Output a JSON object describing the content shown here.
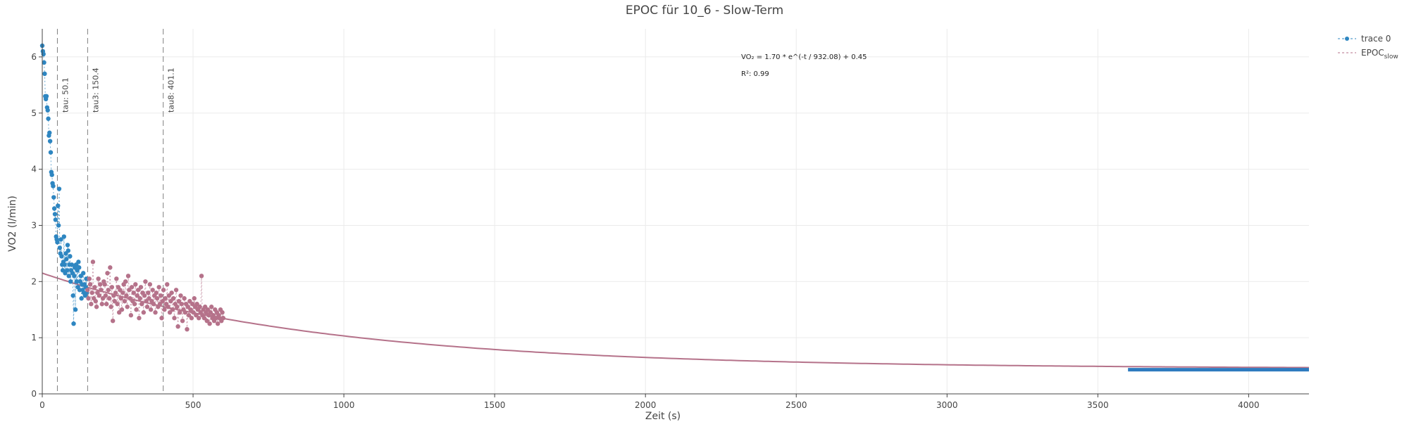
{
  "colors": {
    "trace0": "#2e86c1",
    "epoc_slow": "#b5728a",
    "fit_line": "#b5728a",
    "baseline": "#2e7bbf",
    "grid": "#ebebeb",
    "axis": "#444444",
    "vline": "#7f7f7f"
  },
  "chart_data": {
    "type": "scatter",
    "title": "EPOC für 10_6 - Slow-Term",
    "xlabel": "Zeit (s)",
    "ylabel": "VO2 (l/min)",
    "xlim": [
      0,
      4200
    ],
    "ylim": [
      0,
      6.5
    ],
    "xticks": [
      0,
      500,
      1000,
      1500,
      2000,
      2500,
      3000,
      3500,
      4000
    ],
    "yticks": [
      0,
      1,
      2,
      3,
      4,
      5,
      6
    ],
    "grid": true,
    "legend_position": "top-right",
    "legend": [
      {
        "label": "trace 0",
        "sub": ""
      },
      {
        "label": "EPOC",
        "sub": "slow"
      }
    ],
    "annotations": [
      "VO₂ = 1.70 * e^(-t / 932.08) + 0.45",
      "R²: 0.99"
    ],
    "vlines": [
      {
        "x": 50.1,
        "label": "tau: 50.1"
      },
      {
        "x": 150.4,
        "label": "tau3: 150.4"
      },
      {
        "x": 401.1,
        "label": "tau8: 401.1"
      }
    ],
    "fit": {
      "amplitude": 1.7,
      "tau": 932.08,
      "offset": 0.45,
      "x_range": [
        0,
        4200
      ]
    },
    "baseline": {
      "x": [
        3600,
        4200
      ],
      "y": 0.43
    },
    "series": [
      {
        "name": "trace 0",
        "x": [
          0,
          2,
          4,
          6,
          8,
          10,
          12,
          14,
          16,
          18,
          20,
          22,
          24,
          26,
          28,
          30,
          32,
          34,
          36,
          38,
          40,
          42,
          44,
          46,
          48,
          50,
          52,
          54,
          56,
          58,
          60,
          62,
          64,
          66,
          68,
          70,
          72,
          74,
          76,
          78,
          80,
          82,
          84,
          86,
          88,
          90,
          92,
          94,
          96,
          98,
          100,
          102,
          104,
          106,
          108,
          110,
          112,
          114,
          116,
          118,
          120,
          122,
          124,
          126,
          128,
          130,
          132,
          134,
          136,
          138,
          140,
          142,
          144,
          146,
          148
        ],
        "y": [
          6.2,
          6.1,
          6.05,
          5.9,
          5.7,
          5.3,
          5.25,
          5.3,
          5.1,
          5.05,
          4.9,
          4.6,
          4.65,
          4.5,
          4.3,
          3.95,
          3.9,
          3.75,
          3.7,
          3.5,
          3.3,
          3.2,
          3.1,
          2.8,
          2.75,
          2.7,
          3.35,
          3.0,
          3.65,
          2.6,
          2.5,
          2.75,
          2.45,
          2.3,
          2.2,
          2.35,
          2.8,
          2.3,
          2.15,
          2.5,
          2.4,
          2.2,
          2.65,
          2.55,
          2.1,
          2.3,
          2.45,
          2.0,
          2.2,
          2.3,
          2.15,
          1.75,
          1.25,
          2.1,
          2.25,
          1.5,
          2.3,
          2.0,
          2.2,
          1.9,
          2.35,
          2.25,
          1.85,
          2.0,
          2.1,
          1.7,
          1.95,
          1.85,
          2.15,
          1.8,
          1.95,
          1.75,
          1.9,
          2.05,
          1.8
        ]
      },
      {
        "name": "EPOC slow",
        "x": [
          150,
          153,
          156,
          159,
          162,
          165,
          168,
          171,
          174,
          177,
          180,
          183,
          186,
          189,
          192,
          195,
          198,
          201,
          204,
          207,
          210,
          213,
          216,
          219,
          222,
          225,
          228,
          231,
          234,
          237,
          240,
          243,
          246,
          249,
          252,
          255,
          258,
          261,
          264,
          267,
          270,
          273,
          276,
          279,
          282,
          285,
          288,
          291,
          294,
          297,
          300,
          303,
          306,
          309,
          312,
          315,
          318,
          321,
          324,
          327,
          330,
          333,
          336,
          339,
          342,
          345,
          348,
          351,
          354,
          357,
          360,
          363,
          366,
          369,
          372,
          375,
          378,
          381,
          384,
          387,
          390,
          393,
          396,
          399,
          402,
          405,
          408,
          411,
          414,
          417,
          420,
          423,
          426,
          429,
          432,
          435,
          438,
          441,
          444,
          447,
          450,
          453,
          456,
          459,
          462,
          465,
          468,
          471,
          474,
          477,
          480,
          483,
          486,
          489,
          492,
          495,
          498,
          501,
          504,
          507,
          510,
          513,
          516,
          519,
          522,
          525,
          528,
          531,
          534,
          537,
          540,
          543,
          546,
          549,
          552,
          555,
          558,
          561,
          564,
          567,
          570,
          573,
          576,
          579,
          582,
          585,
          588,
          591,
          594,
          597,
          600
        ],
        "y": [
          1.85,
          1.7,
          2.05,
          1.95,
          1.6,
          1.8,
          2.35,
          1.7,
          1.9,
          1.65,
          1.55,
          1.8,
          2.05,
          1.75,
          1.95,
          1.85,
          1.6,
          1.7,
          2.0,
          1.95,
          1.75,
          1.6,
          2.15,
          1.85,
          1.7,
          2.25,
          1.55,
          1.9,
          1.3,
          1.75,
          1.65,
          1.8,
          2.05,
          1.6,
          1.9,
          1.45,
          1.85,
          1.7,
          1.5,
          1.8,
          1.95,
          1.65,
          2.0,
          1.75,
          1.55,
          2.1,
          1.85,
          1.7,
          1.4,
          1.9,
          1.65,
          1.8,
          1.6,
          1.95,
          1.5,
          1.75,
          1.85,
          1.35,
          1.7,
          1.9,
          1.6,
          1.8,
          1.45,
          1.75,
          2.0,
          1.65,
          1.55,
          1.8,
          1.7,
          1.95,
          1.5,
          1.65,
          1.85,
          1.6,
          1.75,
          1.45,
          1.8,
          1.7,
          1.55,
          1.9,
          1.6,
          1.75,
          1.35,
          1.65,
          1.85,
          1.5,
          1.7,
          1.6,
          1.95,
          1.55,
          1.75,
          1.45,
          1.65,
          1.8,
          1.5,
          1.7,
          1.35,
          1.6,
          1.85,
          1.55,
          1.2,
          1.65,
          1.45,
          1.75,
          1.6,
          1.3,
          1.5,
          1.7,
          1.45,
          1.6,
          1.15,
          1.55,
          1.4,
          1.65,
          1.5,
          1.35,
          1.6,
          1.45,
          1.7,
          1.55,
          1.4,
          1.6,
          1.5,
          1.35,
          1.55,
          1.45,
          2.1,
          1.4,
          1.5,
          1.35,
          1.55,
          1.45,
          1.3,
          1.5,
          1.4,
          1.25,
          1.45,
          1.55,
          1.35,
          1.4,
          1.3,
          1.5,
          1.35,
          1.45,
          1.25,
          1.4,
          1.35,
          1.5,
          1.3,
          1.45,
          1.35
        ]
      }
    ]
  }
}
